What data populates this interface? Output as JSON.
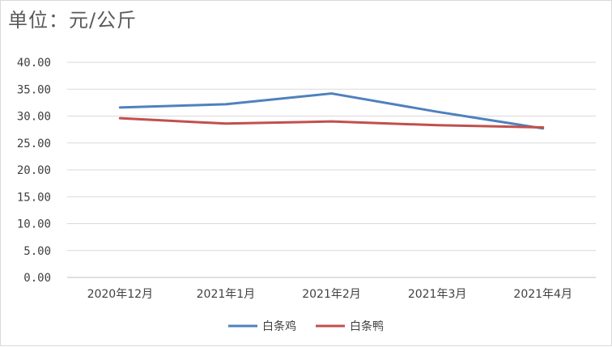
{
  "unit_label": "单位：元/公斤",
  "chart_data": {
    "type": "line",
    "title": "",
    "xlabel": "",
    "ylabel": "单位：元/公斤",
    "categories": [
      "2020年12月",
      "2021年1月",
      "2021年2月",
      "2021年3月",
      "2021年4月"
    ],
    "yticks": [
      "0.00",
      "5.00",
      "10.00",
      "15.00",
      "20.00",
      "25.00",
      "30.00",
      "35.00",
      "40.00"
    ],
    "ylim": [
      0,
      40
    ],
    "grid": true,
    "legend_position": "bottom",
    "series": [
      {
        "name": "白条鸡",
        "color": "#4f81bd",
        "values": [
          31.6,
          32.2,
          34.2,
          30.8,
          27.7
        ]
      },
      {
        "name": "白条鸭",
        "color": "#c0504d",
        "values": [
          29.6,
          28.6,
          29.0,
          28.3,
          27.9
        ]
      }
    ]
  }
}
